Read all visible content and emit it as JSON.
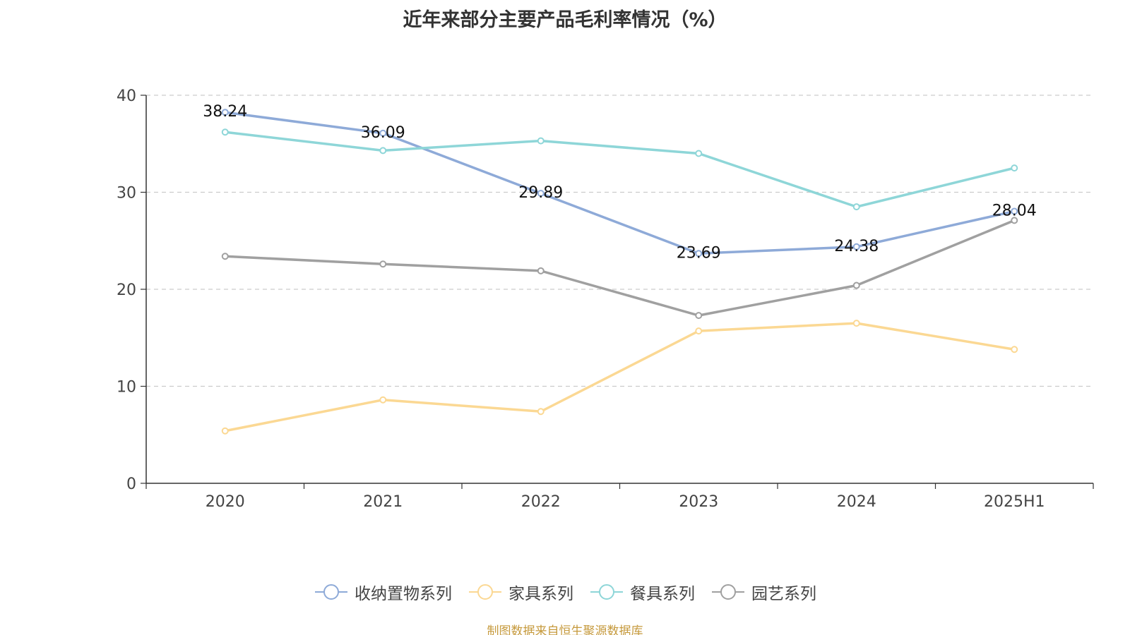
{
  "chart_data": {
    "type": "line",
    "title": "近年来部分主要产品毛利率情况（%）",
    "xlabel": "",
    "ylabel": "",
    "categories": [
      "2020",
      "2021",
      "2022",
      "2023",
      "2024",
      "2025H1"
    ],
    "ylim": [
      0,
      40
    ],
    "yticks": [
      0,
      10,
      20,
      30,
      40
    ],
    "grid": true,
    "legend_position": "bottom",
    "series": [
      {
        "name": "收纳置物系列",
        "color": "#8eaad8",
        "values": [
          38.24,
          36.09,
          29.89,
          23.69,
          24.38,
          28.04
        ],
        "show_labels": true
      },
      {
        "name": "家具系列",
        "color": "#fbd893",
        "values": [
          5.4,
          8.6,
          7.4,
          15.7,
          16.5,
          13.8
        ],
        "show_labels": false
      },
      {
        "name": "餐具系列",
        "color": "#8ed6d8",
        "values": [
          36.2,
          34.3,
          35.3,
          34.0,
          28.5,
          32.5
        ],
        "show_labels": false
      },
      {
        "name": "园艺系列",
        "color": "#a0a0a0",
        "values": [
          23.4,
          22.6,
          21.9,
          17.3,
          20.4,
          27.1
        ],
        "show_labels": false
      }
    ]
  },
  "source_note": "制图数据来自恒生聚源数据库"
}
